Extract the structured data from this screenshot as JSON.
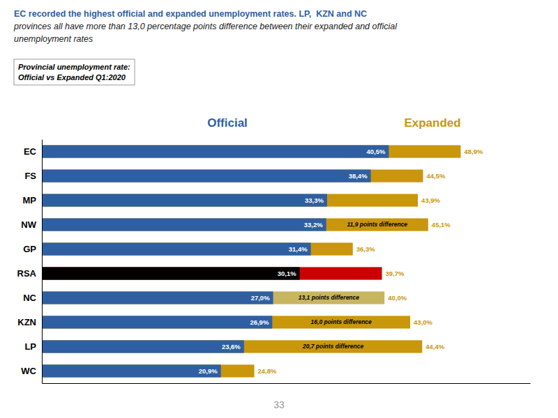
{
  "chart_data": {
    "type": "bar",
    "orientation": "horizontal",
    "stacked": false,
    "title": [
      "EC recorded the highest official and expanded unemployment rates. LP,  KZN and NC",
      "provinces all have more than 13,0 percentage points difference between their expanded and official",
      "unemployment rates"
    ],
    "subtitle": [
      "Provincial unemployment rate:",
      "Official vs Expanded Q1:2020"
    ],
    "categories": [
      "EC",
      "FS",
      "MP",
      "NW",
      "GP",
      "RSA",
      "NC",
      "KZN",
      "LP",
      "WC"
    ],
    "series": [
      {
        "name": "Official",
        "color": "#2E5FA3",
        "colors": [
          "#2E5FA3",
          "#2E5FA3",
          "#2E5FA3",
          "#2E5FA3",
          "#2E5FA3",
          "#000000",
          "#2E5FA3",
          "#2E5FA3",
          "#2E5FA3",
          "#2E5FA3"
        ],
        "values": [
          40.5,
          38.4,
          33.3,
          33.2,
          31.4,
          30.1,
          27.0,
          26.9,
          23.6,
          20.9
        ],
        "value_labels": [
          "40,5%",
          "38,4%",
          "33,3%",
          "33,2%",
          "31,4%",
          "30,1%",
          "27,0%",
          "26,9%",
          "23,6%",
          "20,9%"
        ]
      },
      {
        "name": "Expanded",
        "color": "#C9960C",
        "colors": [
          "#C9960C",
          "#C9960C",
          "#C9960C",
          "#C9960C",
          "#C9960C",
          "#CC0000",
          "#C8B560",
          "#C9960C",
          "#C9960C",
          "#C9960C"
        ],
        "values": [
          48.9,
          44.5,
          43.9,
          45.1,
          36.3,
          39.7,
          40.0,
          43.0,
          44.4,
          24.8
        ],
        "value_labels": [
          "48,9%",
          "44,5%",
          "43,9%",
          "45,1%",
          "36,3%",
          "39,7%",
          "40,0%",
          "43,0%",
          "44,4%",
          "24,8%"
        ]
      }
    ],
    "xlim": [
      0,
      57
    ],
    "grid": false,
    "tick_labels": "y",
    "data_labels": true,
    "annotations": [
      {
        "text": "11,9 points difference",
        "category": "NW"
      },
      {
        "text": "13,1 points difference",
        "category": "NC"
      },
      {
        "text": "16,0 points difference",
        "category": "KZN"
      },
      {
        "text": "20,7 points difference",
        "category": "LP"
      },
      {
        "text": "33"
      }
    ]
  }
}
